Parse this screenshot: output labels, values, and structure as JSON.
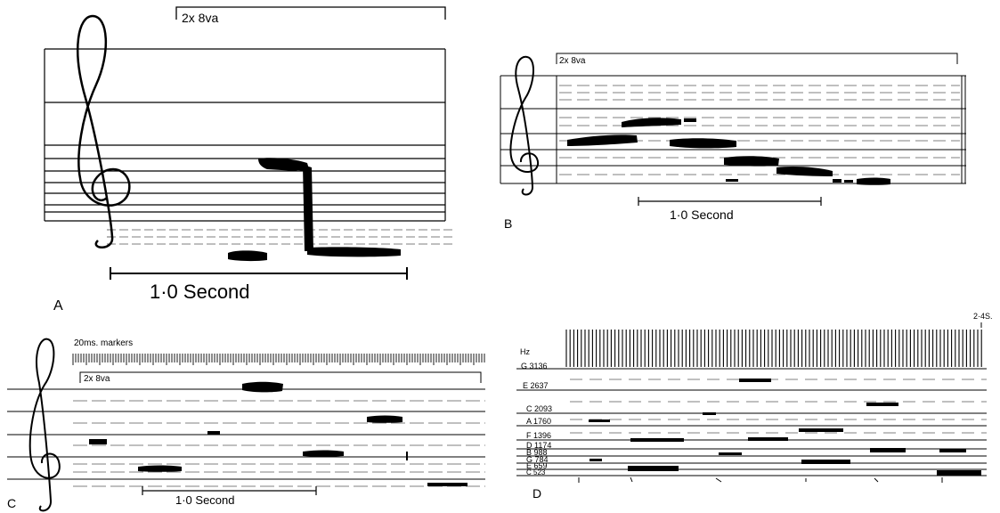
{
  "panels": {
    "a": {
      "letter": "A",
      "octave": "2x 8va",
      "scale": "1·0 Second"
    },
    "b": {
      "letter": "B",
      "octave": "2x 8va",
      "scale": "1·0 Second"
    },
    "c": {
      "letter": "C",
      "markers": "20ms. markers",
      "octave": "2x 8va",
      "scale": "1·0 Second"
    },
    "d": {
      "letter": "D",
      "duration": "2·4S.",
      "unit": "Hz",
      "pitches": [
        "G 3136",
        "E 2637",
        "C 2093",
        "A 1760",
        "F 1396",
        "D 1174",
        "B 988",
        "G 784",
        "E 659",
        "C 523"
      ]
    }
  },
  "colors": {
    "ink": "#000000",
    "paper": "#ffffff"
  }
}
